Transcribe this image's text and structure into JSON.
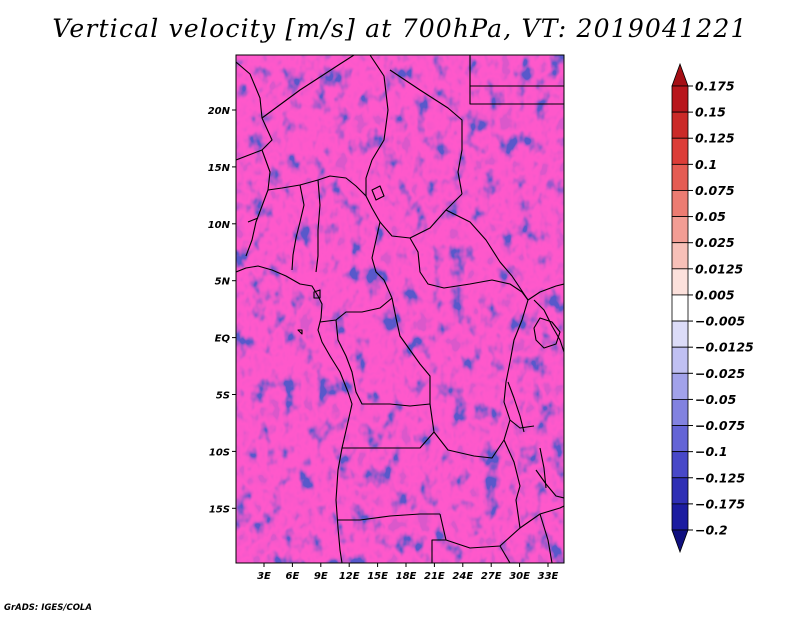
{
  "title": "Vertical velocity [m/s] at 700hPa, VT: 2019041221",
  "credit": "GrADS: IGES/COLA",
  "lat_axis": [
    "20N",
    "15N",
    "10N",
    "5N",
    "EQ",
    "5S",
    "10S",
    "15S"
  ],
  "lon_axis": [
    "3E",
    "6E",
    "9E",
    "12E",
    "15E",
    "18E",
    "21E",
    "24E",
    "27E",
    "30E",
    "33E"
  ],
  "colorbar": {
    "labels": [
      "0.175",
      "0.15",
      "0.125",
      "0.1",
      "0.075",
      "0.05",
      "0.025",
      "0.0125",
      "0.005",
      "−0.005",
      "−0.0125",
      "−0.025",
      "−0.05",
      "−0.075",
      "−0.1",
      "−0.125",
      "−0.175",
      "−0.2"
    ],
    "colors": [
      "#a50f15",
      "#b8161c",
      "#cb2a28",
      "#dc3d38",
      "#e55c53",
      "#ec7c72",
      "#f29d94",
      "#f7c0b8",
      "#fce1dc",
      "#ffffff",
      "#dcdcf8",
      "#c0c0f2",
      "#a2a2ea",
      "#8282e0",
      "#6464d6",
      "#4848c8",
      "#2f2fb5",
      "#1c1ca0",
      "#10107f"
    ]
  }
}
